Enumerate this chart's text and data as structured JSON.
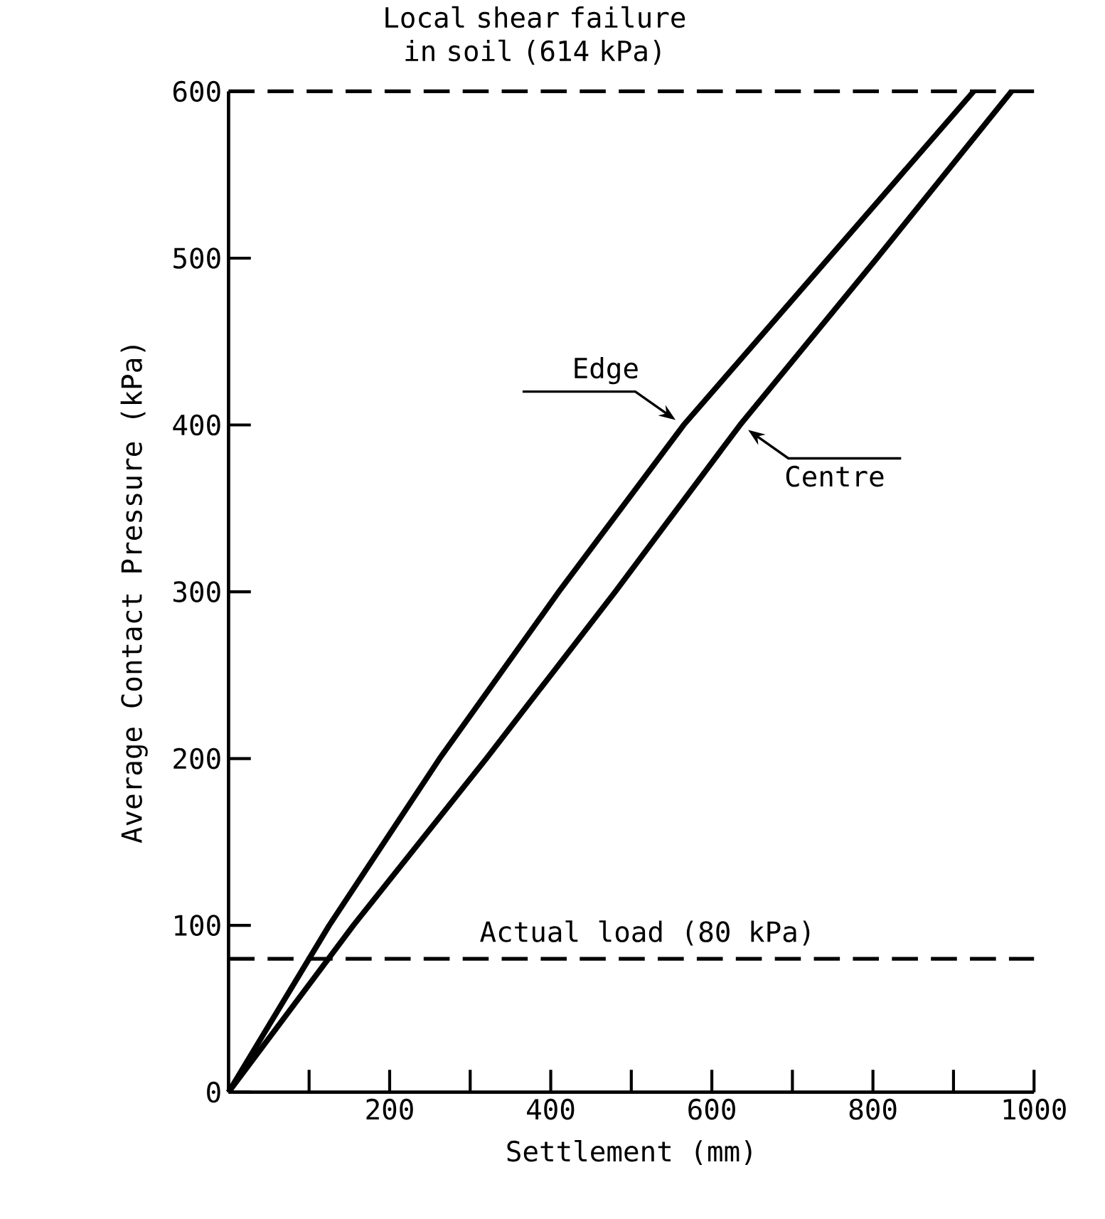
{
  "chart_data": {
    "type": "line",
    "xlabel": "Settlement (mm)",
    "ylabel": "Average Contact Pressure (kPa)",
    "xlim": [
      0,
      1000
    ],
    "ylim": [
      0,
      600
    ],
    "xticks": [
      {
        "value": 100,
        "label": null
      },
      200,
      {
        "value": 300,
        "label": null
      },
      400,
      {
        "value": 500,
        "label": null
      },
      600,
      {
        "value": 700,
        "label": null
      },
      800,
      {
        "value": 900,
        "label": null
      },
      1000
    ],
    "yticks": [
      0,
      100,
      200,
      300,
      400,
      500,
      600
    ],
    "series": [
      {
        "name": "Edge",
        "color": "#000000",
        "x": [
          0,
          125,
          262,
          410,
          565,
          745,
          925
        ],
        "values": [
          0,
          100,
          200,
          300,
          400,
          500,
          600
        ]
      },
      {
        "name": "Centre",
        "color": "#000000",
        "x": [
          0,
          155,
          320,
          480,
          635,
          805,
          972
        ],
        "values": [
          0,
          100,
          200,
          300,
          400,
          500,
          600
        ]
      }
    ],
    "ref_lines": [
      {
        "axis": "y",
        "value": 600,
        "label": "Local shear failure in soil (614 kPa)",
        "line_style": "dashed"
      },
      {
        "axis": "y",
        "value": 80,
        "label": "Actual load (80 kPa)",
        "line_style": "dashed"
      }
    ],
    "grid": false,
    "legend": false,
    "marker": "none",
    "line_style": "solid"
  }
}
